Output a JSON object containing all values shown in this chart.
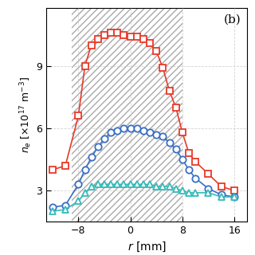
{
  "title": "(b)",
  "xlabel": "r [mm]",
  "ylabel": "$n_e$ [$\\times$10$^{17}$ m$^{-3}$]",
  "xlim": [
    -13,
    18
  ],
  "ylim": [
    1.5,
    11.8
  ],
  "yticks": [
    3,
    6,
    9
  ],
  "xticks": [
    -8,
    0,
    8,
    16
  ],
  "hatch_xmin": -9,
  "hatch_xmax": 8,
  "red_r": [
    -12,
    -10,
    -8,
    -7,
    -6,
    -5,
    -4,
    -3,
    -2,
    -1,
    0,
    1,
    2,
    3,
    4,
    5,
    6,
    7,
    8,
    9,
    10,
    12,
    14,
    16
  ],
  "red_ne": [
    4.0,
    4.2,
    6.6,
    9.0,
    10.0,
    10.3,
    10.5,
    10.6,
    10.6,
    10.5,
    10.4,
    10.4,
    10.3,
    10.1,
    9.7,
    8.9,
    7.8,
    7.0,
    5.8,
    4.8,
    4.4,
    3.8,
    3.2,
    3.0
  ],
  "blue_r": [
    -12,
    -10,
    -8,
    -7,
    -6,
    -5,
    -4,
    -3,
    -2,
    -1,
    0,
    1,
    2,
    3,
    4,
    5,
    6,
    7,
    8,
    9,
    10,
    12,
    14,
    16
  ],
  "blue_ne": [
    2.2,
    2.3,
    3.3,
    4.0,
    4.6,
    5.1,
    5.5,
    5.8,
    5.9,
    6.0,
    6.0,
    6.0,
    5.9,
    5.8,
    5.7,
    5.6,
    5.3,
    5.0,
    4.5,
    4.0,
    3.6,
    3.1,
    2.8,
    2.7
  ],
  "cyan_r": [
    -12,
    -10,
    -8,
    -7,
    -6,
    -5,
    -4,
    -3,
    -2,
    -1,
    0,
    1,
    2,
    3,
    4,
    5,
    6,
    7,
    8,
    9,
    10,
    12,
    14,
    16
  ],
  "cyan_ne": [
    2.0,
    2.1,
    2.5,
    2.9,
    3.2,
    3.3,
    3.3,
    3.3,
    3.3,
    3.3,
    3.3,
    3.3,
    3.3,
    3.3,
    3.2,
    3.2,
    3.2,
    3.1,
    3.0,
    2.9,
    2.9,
    2.9,
    2.7,
    2.7
  ],
  "red_color": "#e8392a",
  "blue_color": "#3a6fc4",
  "cyan_color": "#35baba",
  "bg_color": "#ffffff",
  "grid_color": "#c8c8c8"
}
